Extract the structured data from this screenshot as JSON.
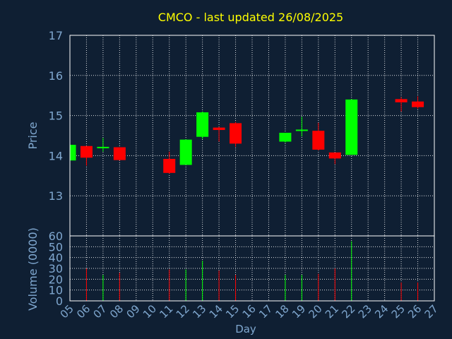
{
  "colors": {
    "background": "#0f1f33",
    "up": "#00ff00",
    "down": "#ff0000",
    "title": "#ffff00",
    "axis_text": "#7fa7cf",
    "frame": "#ffffff",
    "grid": "#ffffff"
  },
  "chart_data": {
    "type": "candlestick",
    "title": "CMCO - last updated 26/08/2025",
    "xlabel": "Day",
    "price_panel": {
      "ylabel": "Price",
      "ylim": [
        12.0,
        17.0
      ],
      "yticks": [
        "13",
        "14",
        "15",
        "16",
        "17"
      ],
      "grid": true
    },
    "volume_panel": {
      "ylabel": "Volume (0000)",
      "ylim": [
        0,
        60
      ],
      "yticks": [
        "0",
        "10",
        "20",
        "30",
        "40",
        "50",
        "60"
      ],
      "grid": true
    },
    "x_ticks": [
      "05",
      "06",
      "07",
      "08",
      "09",
      "10",
      "11",
      "12",
      "13",
      "14",
      "15",
      "16",
      "17",
      "18",
      "19",
      "20",
      "21",
      "22",
      "23",
      "24",
      "25",
      "26",
      "27"
    ],
    "candles": [
      {
        "day": "05",
        "open": 13.88,
        "high": 14.28,
        "low": 13.88,
        "close": 14.27,
        "volume": 0
      },
      {
        "day": "06",
        "open": 14.24,
        "high": 14.24,
        "low": 13.75,
        "close": 13.95,
        "volume": 30
      },
      {
        "day": "07",
        "open": 14.19,
        "high": 14.44,
        "low": 14.1,
        "close": 14.22,
        "volume": 24
      },
      {
        "day": "08",
        "open": 14.21,
        "high": 14.21,
        "low": 13.88,
        "close": 13.89,
        "volume": 26
      },
      {
        "day": "11",
        "open": 13.92,
        "high": 14.1,
        "low": 13.55,
        "close": 13.57,
        "volume": 29
      },
      {
        "day": "12",
        "open": 13.77,
        "high": 14.41,
        "low": 13.77,
        "close": 14.4,
        "volume": 29
      },
      {
        "day": "13",
        "open": 14.47,
        "high": 15.1,
        "low": 14.42,
        "close": 15.08,
        "volume": 37
      },
      {
        "day": "14",
        "open": 14.7,
        "high": 14.72,
        "low": 14.35,
        "close": 14.64,
        "volume": 28
      },
      {
        "day": "15",
        "open": 14.81,
        "high": 14.84,
        "low": 14.22,
        "close": 14.3,
        "volume": 24
      },
      {
        "day": "18",
        "open": 14.35,
        "high": 14.57,
        "low": 14.32,
        "close": 14.57,
        "volume": 24
      },
      {
        "day": "19",
        "open": 14.64,
        "high": 14.97,
        "low": 14.48,
        "close": 14.65,
        "volume": 24
      },
      {
        "day": "20",
        "open": 14.62,
        "high": 14.82,
        "low": 14.13,
        "close": 14.15,
        "volume": 25
      },
      {
        "day": "21",
        "open": 14.08,
        "high": 14.08,
        "low": 13.79,
        "close": 13.93,
        "volume": 30
      },
      {
        "day": "22",
        "open": 14.02,
        "high": 15.41,
        "low": 14.02,
        "close": 15.4,
        "volume": 55
      },
      {
        "day": "25",
        "open": 15.41,
        "high": 15.46,
        "low": 15.1,
        "close": 15.33,
        "volume": 17
      },
      {
        "day": "26",
        "open": 15.35,
        "high": 15.48,
        "low": 15.17,
        "close": 15.21,
        "volume": 17
      }
    ]
  }
}
